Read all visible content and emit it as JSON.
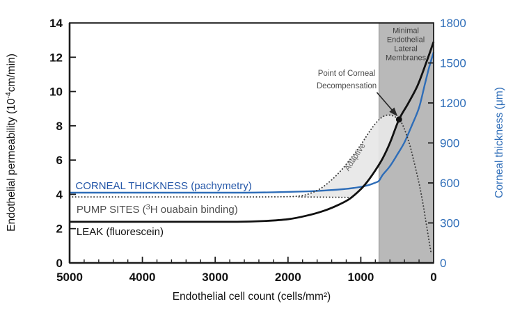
{
  "chart_data": {
    "type": "line",
    "title": "",
    "x_axis": {
      "label": "Endothelial cell count (cells/mm²)",
      "min": 0,
      "max": 5000,
      "reversed": true,
      "major_ticks": [
        5000,
        4000,
        3000,
        2000,
        1000,
        0
      ],
      "minor_step": 200
    },
    "y_left": {
      "label_segments": [
        {
          "t": "Endothelial permeability (10"
        },
        {
          "t": "-4",
          "sup": true
        },
        {
          "t": "cm/min)"
        }
      ],
      "min": 0,
      "max": 14,
      "ticks": [
        0,
        2,
        4,
        6,
        8,
        10,
        12,
        14
      ],
      "color": "#111111"
    },
    "y_right": {
      "label": "Corneal thickness (μm)",
      "min": 0,
      "max": 1800,
      "ticks": [
        0,
        300,
        600,
        900,
        1200,
        1500,
        1800
      ],
      "color": "#2e6db8"
    },
    "series": [
      {
        "name": "corneal-thickness-line",
        "label": "CORNEAL THICKNESS (pachymetry)",
        "axis": "right",
        "style": "solid",
        "color": "#2e6db8",
        "width": 2.4,
        "points": [
          [
            5000,
            527
          ],
          [
            3500,
            527
          ],
          [
            2600,
            527
          ],
          [
            2200,
            530
          ],
          [
            1800,
            536
          ],
          [
            1500,
            543
          ],
          [
            1250,
            553
          ],
          [
            1050,
            566
          ],
          [
            900,
            583
          ],
          [
            800,
            602
          ],
          [
            750,
            616
          ],
          [
            700,
            660
          ],
          [
            600,
            725
          ],
          [
            500,
            812
          ],
          [
            400,
            905
          ],
          [
            300,
            1030
          ],
          [
            200,
            1165
          ],
          [
            120,
            1340
          ],
          [
            60,
            1470
          ],
          [
            0,
            1580
          ]
        ]
      },
      {
        "name": "pump-sites-line",
        "label": "PUMP SITES (3H ouabain binding)",
        "axis": "left",
        "style": "dotted",
        "color": "#383838",
        "width": 2,
        "points": [
          [
            5000,
            3.85
          ],
          [
            3500,
            3.85
          ],
          [
            2600,
            3.85
          ],
          [
            2100,
            3.86
          ],
          [
            1850,
            3.9
          ],
          [
            1700,
            4.05
          ],
          [
            1550,
            4.35
          ],
          [
            1400,
            4.85
          ],
          [
            1250,
            5.5
          ],
          [
            1100,
            6.3
          ],
          [
            975,
            7.05
          ],
          [
            875,
            7.7
          ],
          [
            775,
            8.25
          ],
          [
            675,
            8.58
          ],
          [
            575,
            8.6
          ],
          [
            475,
            8.37
          ],
          [
            425,
            8.05
          ],
          [
            375,
            7.5
          ],
          [
            325,
            6.85
          ],
          [
            280,
            6.1
          ],
          [
            235,
            5.3
          ],
          [
            195,
            4.55
          ],
          [
            150,
            3.55
          ],
          [
            105,
            2.4
          ],
          [
            65,
            1.35
          ],
          [
            35,
            0.6
          ]
        ]
      },
      {
        "name": "leak-line",
        "label": "LEAK (fluorescein)",
        "axis": "left",
        "style": "solid",
        "color": "#111111",
        "width": 2.8,
        "points": [
          [
            5000,
            2.4
          ],
          [
            3500,
            2.4
          ],
          [
            2700,
            2.4
          ],
          [
            2300,
            2.45
          ],
          [
            2000,
            2.55
          ],
          [
            1750,
            2.75
          ],
          [
            1500,
            3.05
          ],
          [
            1300,
            3.4
          ],
          [
            1150,
            3.75
          ],
          [
            1000,
            4.3
          ],
          [
            900,
            4.8
          ],
          [
            800,
            5.4
          ],
          [
            700,
            6.1
          ],
          [
            600,
            7.0
          ],
          [
            475,
            8.37
          ],
          [
            350,
            9.3
          ],
          [
            220,
            10.35
          ],
          [
            100,
            11.7
          ],
          [
            0,
            12.9
          ]
        ]
      }
    ],
    "pump_baseline_extension": [
      [
        1850,
        3.85
      ],
      [
        1120,
        3.82
      ]
    ],
    "adaptive_region": {
      "label": "Adaptive",
      "fill": "#e7e7e7",
      "label_cell": 1052,
      "label_value": 6.1,
      "label_rotation": -57,
      "outline": [
        [
          1850,
          3.87
        ],
        [
          1700,
          4.05
        ],
        [
          1550,
          4.35
        ],
        [
          1400,
          4.85
        ],
        [
          1250,
          5.5
        ],
        [
          1100,
          6.3
        ],
        [
          975,
          7.05
        ],
        [
          875,
          7.7
        ],
        [
          775,
          8.25
        ],
        [
          675,
          8.58
        ],
        [
          575,
          8.6
        ],
        [
          475,
          8.37
        ],
        [
          600,
          7.0
        ],
        [
          700,
          6.1
        ],
        [
          800,
          5.4
        ],
        [
          900,
          4.8
        ],
        [
          1000,
          4.3
        ],
        [
          1120,
          3.85
        ]
      ]
    },
    "band": {
      "label_lines": [
        "Minimal",
        "Endothelial",
        "Lateral",
        "Membranes"
      ],
      "from_cell": 750,
      "to_cell": 0,
      "fill": "#b9b9b9",
      "label_cell": 382,
      "label_top_value": 13.42,
      "text_color": "#3d3d3d"
    },
    "decompensation": {
      "label_lines": [
        "Point of Corneal",
        "Decompensation"
      ],
      "cell": 475,
      "value": 8.37,
      "label_cell": 1195,
      "label_value": 10.92,
      "arrow_from": [
        780,
        9.95
      ],
      "arrow_to": [
        505,
        8.6
      ],
      "text_color": "#4a4a4a"
    },
    "curve_labels": [
      {
        "name": "corneal-thickness-label",
        "color": "#2356a8",
        "cell": 4920,
        "value": 4.3,
        "size": 15,
        "segments": [
          {
            "t": "CORNEAL THICKNESS (pachymetry)"
          }
        ]
      },
      {
        "name": "pump-sites-label",
        "color": "#4f4f4f",
        "cell": 4905,
        "value": 2.92,
        "size": 15,
        "segments": [
          {
            "t": "PUMP SITES ("
          },
          {
            "t": "3",
            "sup": true
          },
          {
            "t": "H ouabain binding)"
          }
        ]
      },
      {
        "name": "leak-label",
        "color": "#101010",
        "cell": 4905,
        "value": 1.62,
        "size": 15,
        "segments": [
          {
            "t": "LEAK (fluorescein)"
          }
        ]
      }
    ],
    "colors": {
      "accent_blue": "#2e6db8",
      "axis_black": "#1c1c1c",
      "band_gray": "#b9b9b9",
      "adaptive_gray": "#e7e7e7"
    }
  }
}
